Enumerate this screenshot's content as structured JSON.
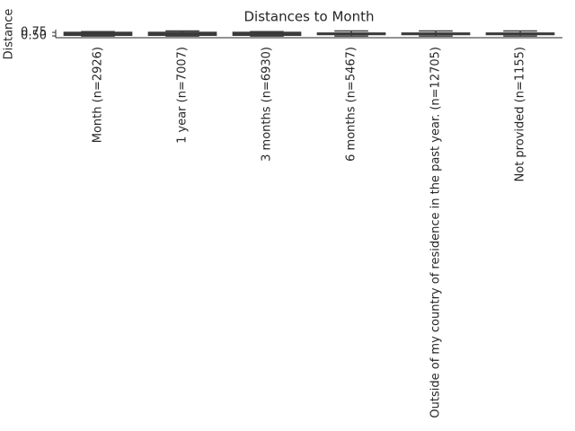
{
  "chart_data": {
    "type": "box",
    "title": "Distances to Month",
    "y_label": "Distance",
    "categories": [
      "Month (n=2926)",
      "1 year (n=7007)",
      "3 months (n=6930)",
      "6 months (n=5467)",
      "Outside of my country of residence in the past year. (n=12705)",
      "Not provided (n=1155)"
    ],
    "boxes": [
      {
        "whislo": 0.5,
        "q1": 0.55,
        "med": 0.65,
        "q3": 0.75,
        "whishi": 0.8
      },
      {
        "whislo": 0.5,
        "q1": 0.55,
        "med": 0.65,
        "q3": 0.75,
        "whishi": 0.85
      },
      {
        "whislo": 0.5,
        "q1": 0.55,
        "med": 0.65,
        "q3": 0.75,
        "whishi": 0.8
      },
      {
        "whislo": 0.5,
        "q1": 0.6,
        "med": 0.65,
        "q3": 0.7,
        "whishi": 0.85
      },
      {
        "whislo": 0.5,
        "q1": 0.6,
        "med": 0.65,
        "q3": 0.7,
        "whishi": 0.85
      },
      {
        "whislo": 0.5,
        "q1": 0.6,
        "med": 0.65,
        "q3": 0.7,
        "whishi": 0.85
      }
    ],
    "color": "#4a4a4a",
    "ylim": [
      0.38,
      0.94
    ],
    "yticks": [
      {
        "value": 0.5,
        "label": "0.50"
      },
      {
        "value": 0.75,
        "label": "0.75"
      }
    ]
  }
}
